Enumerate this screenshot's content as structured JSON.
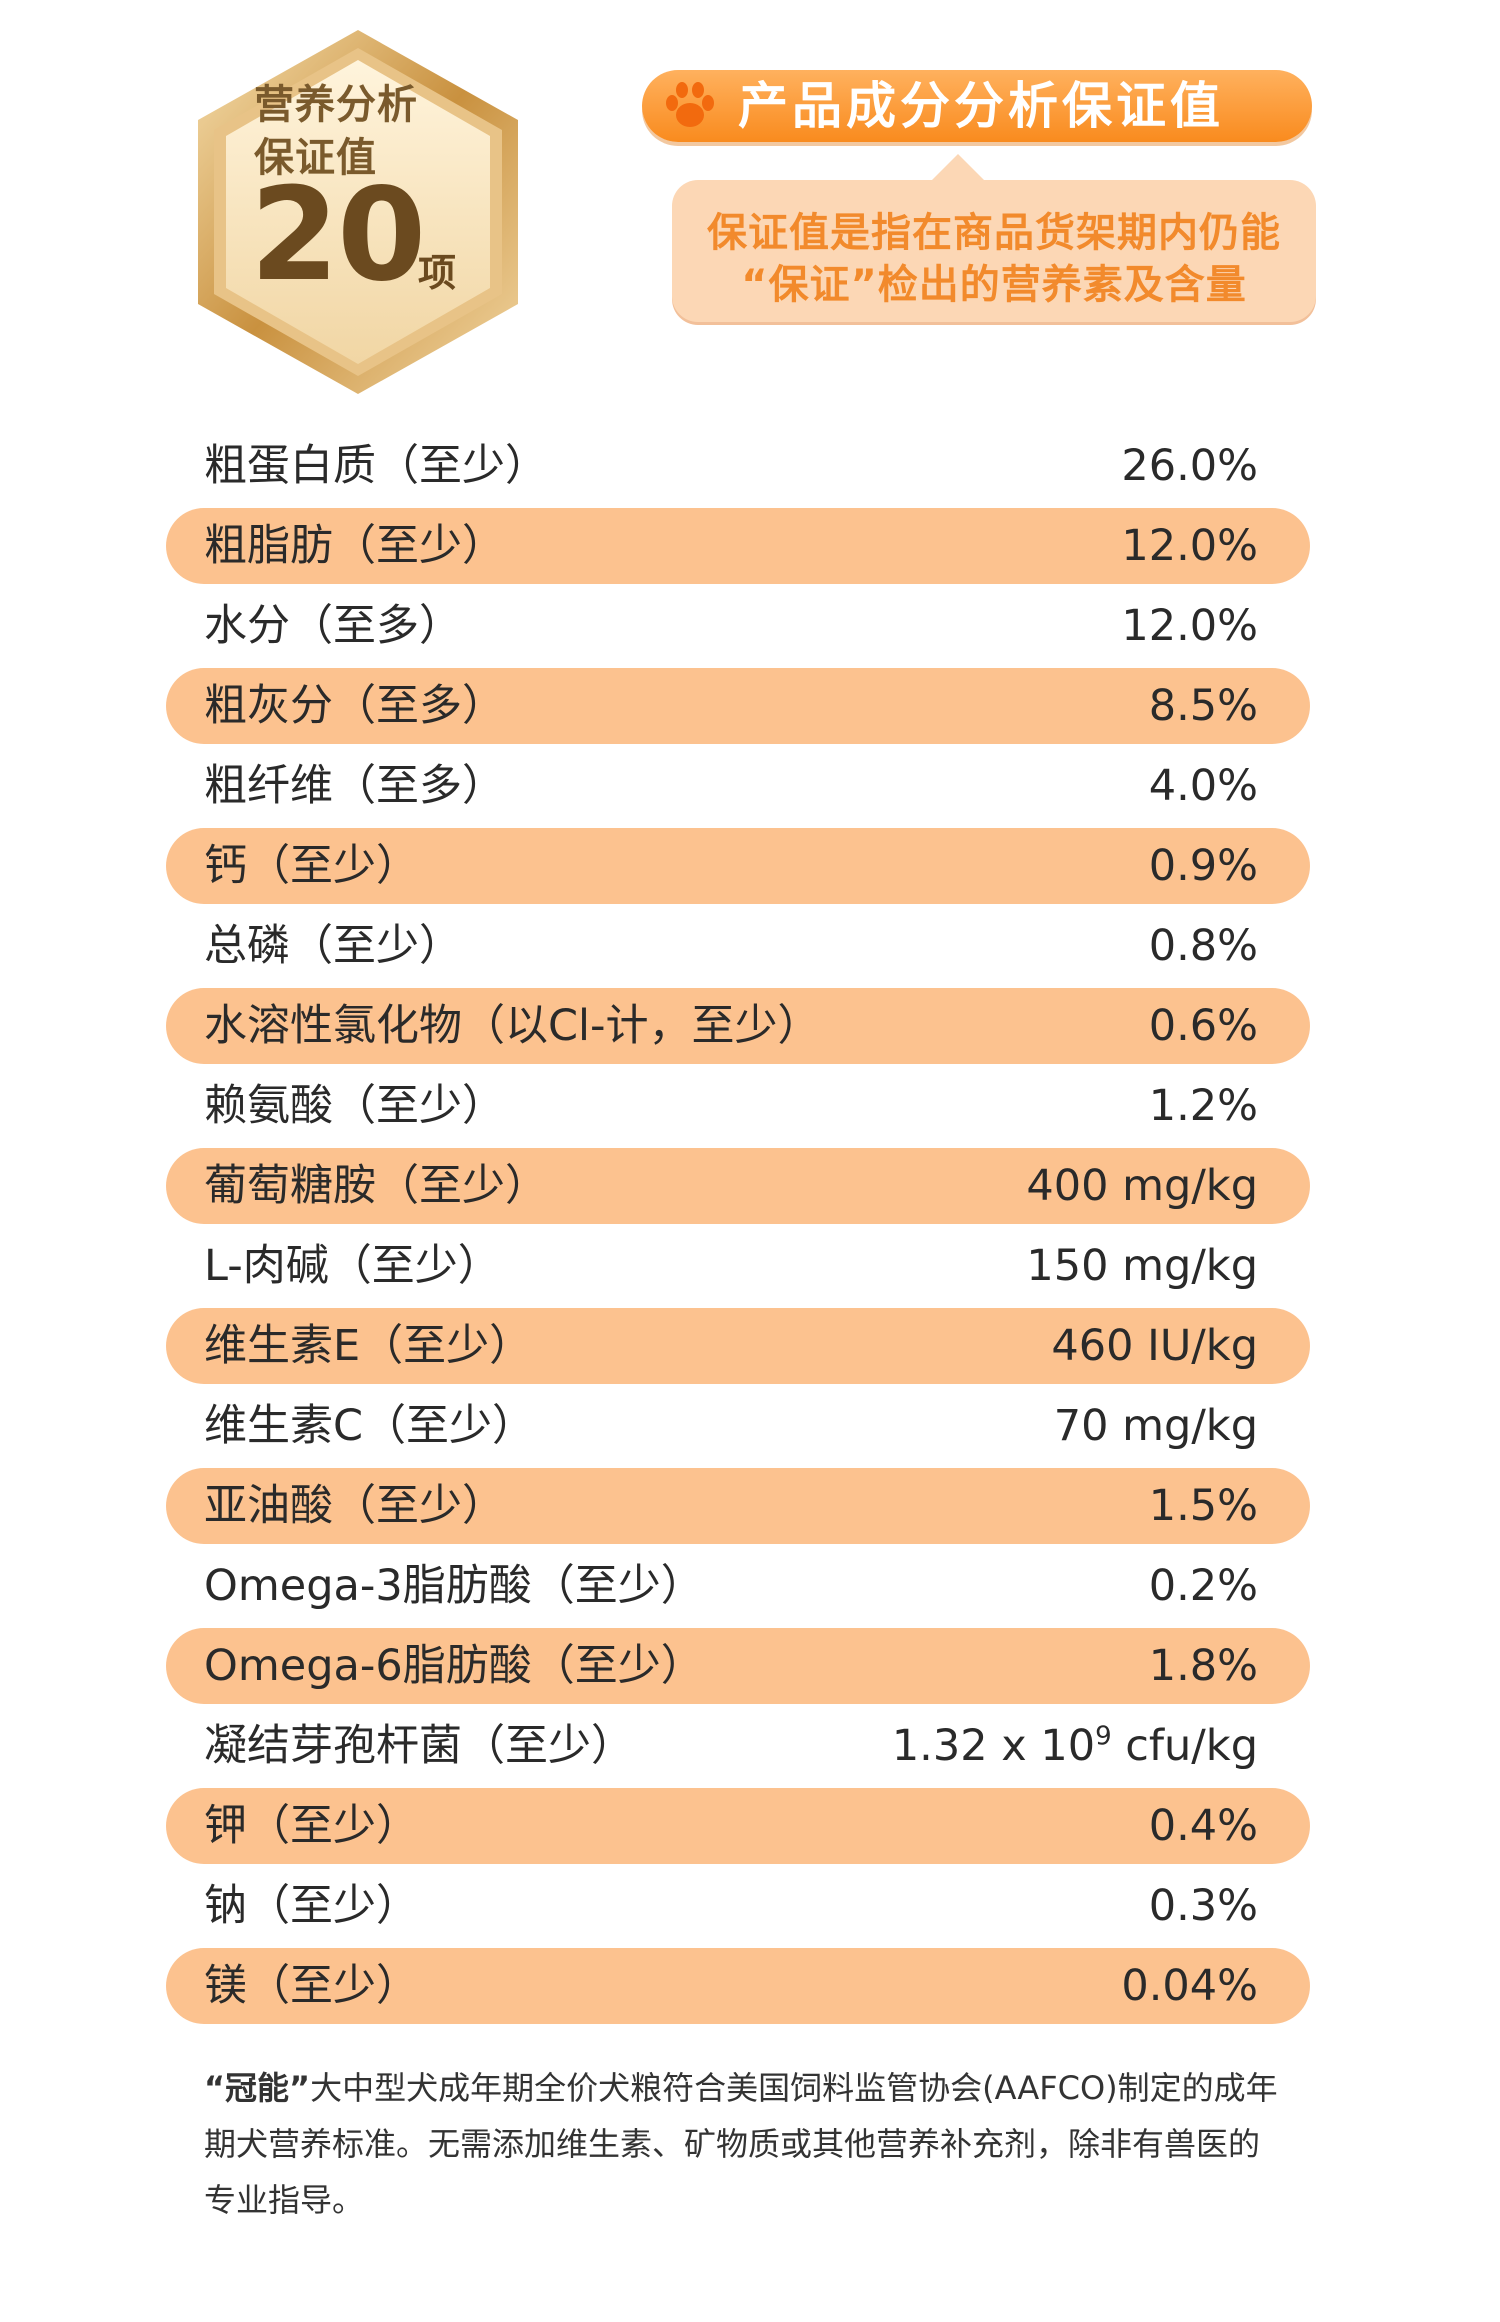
{
  "badge": {
    "line1": "营养分析",
    "line2": "保证值",
    "count": "20",
    "unit": "项"
  },
  "header": {
    "icon": "paw-icon",
    "title": "产品成分分析保证值"
  },
  "callout": {
    "line1": "保证值是指在商品货架期内仍能",
    "line2": "“保证”检出的营养素及含量"
  },
  "nutrients": [
    {
      "name": "粗蛋白质（至少）",
      "value": "26.0%"
    },
    {
      "name": "粗脂肪（至少）",
      "value": "12.0%"
    },
    {
      "name": "水分（至多）",
      "value": "12.0%"
    },
    {
      "name": "粗灰分（至多）",
      "value": "8.5%"
    },
    {
      "name": "粗纤维（至多）",
      "value": "4.0%"
    },
    {
      "name": "钙（至少）",
      "value": "0.9%"
    },
    {
      "name": "总磷（至少）",
      "value": "0.8%"
    },
    {
      "name": "水溶性氯化物（以Cl-计，至少）",
      "value": "0.6%"
    },
    {
      "name": "赖氨酸（至少）",
      "value": "1.2%"
    },
    {
      "name": "葡萄糖胺（至少）",
      "value": "400 mg/kg"
    },
    {
      "name": "L-肉碱（至少）",
      "value": "150 mg/kg"
    },
    {
      "name": "维生素E（至少）",
      "value": "460 IU/kg"
    },
    {
      "name": "维生素C（至少）",
      "value": "70 mg/kg"
    },
    {
      "name": "亚油酸（至少）",
      "value": "1.5%"
    },
    {
      "name": "Omega-3脂肪酸（至少）",
      "value": "0.2%"
    },
    {
      "name": "Omega-6脂肪酸（至少）",
      "value": "1.8%"
    },
    {
      "name": "凝结芽孢杆菌（至少）",
      "value_base": "1.32 x 10",
      "value_exp": "9",
      "value_unit": " cfu/kg"
    },
    {
      "name": "钾（至少）",
      "value": "0.4%"
    },
    {
      "name": "钠（至少）",
      "value": "0.3%"
    },
    {
      "name": "镁（至少）",
      "value": "0.04%"
    }
  ],
  "footnote": {
    "brand": "“冠能”",
    "text": "大中型犬成年期全价犬粮符合美国饲料监管协会(AAFCO)制定的成年期犬营养标准。无需添加维生素、矿物质或其他营养补充剂，除非有兽医的专业指导。"
  },
  "colors": {
    "accent_orange": "#f98b1e",
    "row_highlight": "#fcc28f",
    "callout_bg": "#fcd7b5",
    "badge_gold": "#d9a85c"
  }
}
